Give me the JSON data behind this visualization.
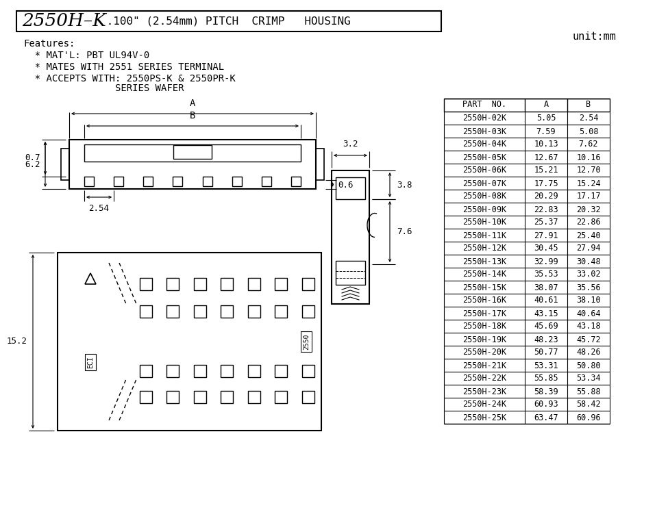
{
  "title_bold": "2550H–K",
  "title_rest": " .100\" (2.54mm) PITCH  CRIMP   HOUSING",
  "unit_label": "unit:mm",
  "features": [
    "Features:",
    "  * MAT'L: PBT UL94V-0",
    "  * MATES WITH 2551 SERIES TERMINAL",
    "  * ACCEPTS WITH: 2550PS-K & 2550PR-K",
    "                SERIES WAFER"
  ],
  "table_headers": [
    "PART  NO.",
    "A",
    "B"
  ],
  "table_data": [
    [
      "2550H-02K",
      "5.05",
      "2.54"
    ],
    [
      "2550H-03K",
      "7.59",
      "5.08"
    ],
    [
      "2550H-04K",
      "10.13",
      "7.62"
    ],
    [
      "2550H-05K",
      "12.67",
      "10.16"
    ],
    [
      "2550H-06K",
      "15.21",
      "12.70"
    ],
    [
      "2550H-07K",
      "17.75",
      "15.24"
    ],
    [
      "2550H-08K",
      "20.29",
      "17.17"
    ],
    [
      "2550H-09K",
      "22.83",
      "20.32"
    ],
    [
      "2550H-10K",
      "25.37",
      "22.86"
    ],
    [
      "2550H-11K",
      "27.91",
      "25.40"
    ],
    [
      "2550H-12K",
      "30.45",
      "27.94"
    ],
    [
      "2550H-13K",
      "32.99",
      "30.48"
    ],
    [
      "2550H-14K",
      "35.53",
      "33.02"
    ],
    [
      "2550H-15K",
      "38.07",
      "35.56"
    ],
    [
      "2550H-16K",
      "40.61",
      "38.10"
    ],
    [
      "2550H-17K",
      "43.15",
      "40.64"
    ],
    [
      "2550H-18K",
      "45.69",
      "43.18"
    ],
    [
      "2550H-19K",
      "48.23",
      "45.72"
    ],
    [
      "2550H-20K",
      "50.77",
      "48.26"
    ],
    [
      "2550H-21K",
      "53.31",
      "50.80"
    ],
    [
      "2550H-22K",
      "55.85",
      "53.34"
    ],
    [
      "2550H-23K",
      "58.39",
      "55.88"
    ],
    [
      "2550H-24K",
      "60.93",
      "58.42"
    ],
    [
      "2550H-25K",
      "63.47",
      "60.96"
    ]
  ],
  "dim_62": "6.2",
  "dim_07": "0.7",
  "dim_254": "2.54",
  "dim_06": "0.6",
  "dim_32": "3.2",
  "dim_38": "3.8",
  "dim_76": "7.6",
  "dim_152": "15.2",
  "dim_A": "A",
  "dim_B": "B",
  "bg_color": "#ffffff",
  "line_color": "#000000",
  "font_color": "#000000"
}
